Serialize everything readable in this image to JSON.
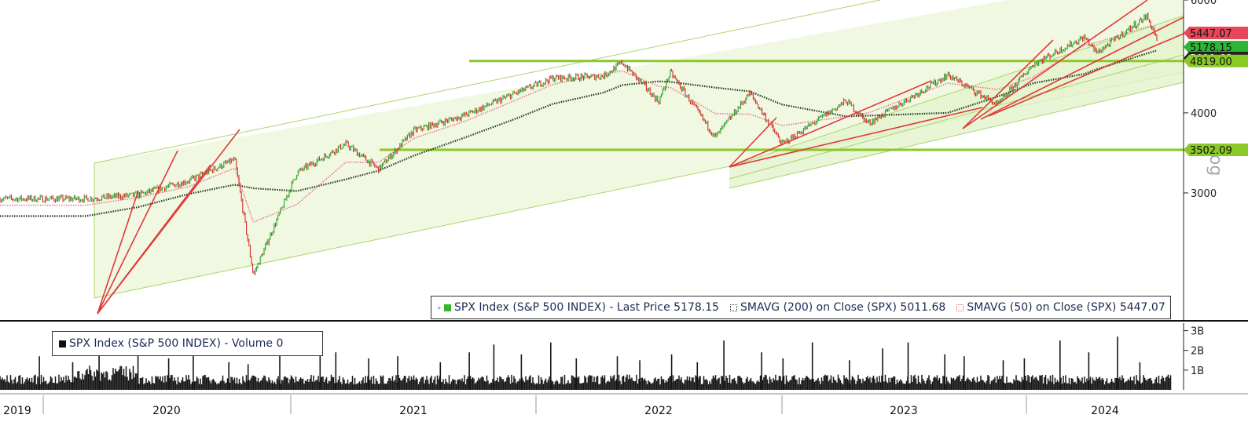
{
  "chart_data": [
    {
      "type": "line",
      "ticker": "SPX Index",
      "scale": "log",
      "ylim": [
        1900,
        6000
      ],
      "y_ticks": [
        "6000",
        "4000",
        "3000"
      ],
      "y_tick_values": [
        6000,
        4000,
        3000
      ],
      "ylabel": "Log",
      "x_labels": [
        "2019",
        "2020",
        "2021",
        "2022",
        "2023",
        "2024"
      ],
      "x": [
        "2019-06-01",
        "2019-09-01",
        "2019-12-01",
        "2020-02-19",
        "2020-03-23",
        "2020-06-08",
        "2020-09-02",
        "2020-10-30",
        "2020-12-31",
        "2021-03-31",
        "2021-06-30",
        "2021-09-02",
        "2021-11-30",
        "2022-01-03",
        "2022-03-08",
        "2022-03-29",
        "2022-06-16",
        "2022-08-16",
        "2022-10-12",
        "2023-02-02",
        "2023-03-13",
        "2023-07-31",
        "2023-10-27",
        "2023-12-29",
        "2024-03-28",
        "2024-04-19",
        "2024-07-16",
        "2024-08-05"
      ],
      "series": [
        {
          "name": "SPX Index (S&P 500 INDEX)",
          "values": [
            2940,
            2980,
            3140,
            3386,
            2237,
            3230,
            3580,
            3270,
            3756,
            3970,
            4300,
            4536,
            4567,
            4796,
            4170,
            4630,
            3667,
            4300,
            3577,
            4180,
            3855,
            4588,
            4117,
            4770,
            5254,
            4967,
            5667,
            5178
          ]
        },
        {
          "name": "SMAVG (200) on Close (SPX)",
          "values": [
            2760,
            2850,
            2990,
            3090,
            3050,
            3020,
            3150,
            3250,
            3430,
            3660,
            3920,
            4130,
            4300,
            4420,
            4480,
            4470,
            4380,
            4320,
            4120,
            3950,
            3960,
            4000,
            4240,
            4450,
            4600,
            4680,
            4950,
            5011
          ]
        },
        {
          "name": "SMAVG (50) on Close (SPX)",
          "values": [
            2870,
            2950,
            3070,
            3280,
            2700,
            2880,
            3350,
            3350,
            3650,
            3880,
            4190,
            4430,
            4600,
            4650,
            4400,
            4380,
            3990,
            3980,
            3820,
            3950,
            4000,
            4450,
            4350,
            4550,
            5100,
            5150,
            5450,
            5447
          ]
        }
      ],
      "price_labels": [
        {
          "text": "5447.07",
          "value": 5447.07,
          "color": "#e8475a"
        },
        {
          "text": "5178.15",
          "value": 5178.15,
          "color": "#2fb536"
        },
        {
          "text": "5011.68",
          "value": 5011.68,
          "color": "#222222"
        },
        {
          "text": "4819.00",
          "value": 4819.0,
          "color": "#8ac926"
        },
        {
          "text": "3502.09",
          "value": 3502.09,
          "color": "#8ac926"
        }
      ],
      "horizontal_levels": [
        4819.0,
        3502.09
      ],
      "legend": {
        "price": "SPX Index (S&P 500 INDEX) - Last Price 5178.15",
        "sma200": "SMAVG (200)  on Close (SPX) 5011.68",
        "sma50": "SMAVG (50)  on Close (SPX) 5447.07"
      },
      "legend_placement": "bottom-right",
      "grid": false
    },
    {
      "type": "bar",
      "name": "SPX Index (S&P 500 INDEX) - Volume",
      "legend": "SPX Index (S&P 500 INDEX) - Volume 0",
      "y_ticks": [
        "3B",
        "2B",
        "1B"
      ],
      "y_tick_values": [
        3,
        2,
        1
      ],
      "unit": "billions of shares",
      "ylim": [
        0,
        3.3
      ],
      "typical_value": 0.55,
      "spike_values": [
        1.7,
        1.4,
        2.5,
        2.0,
        1.6,
        1.9,
        1.4,
        1.3,
        1.8,
        2.2,
        1.9,
        1.6,
        1.7,
        1.4,
        1.9,
        2.3,
        1.8,
        2.4,
        1.6,
        1.7,
        1.5,
        1.8,
        1.4,
        2.5,
        1.9,
        1.6,
        2.4,
        1.5,
        2.1,
        2.4,
        1.8,
        1.7,
        1.5,
        1.6,
        2.5,
        1.9,
        2.7,
        1.4
      ]
    }
  ],
  "colors": {
    "price_up": "#2e9e2e",
    "price_down": "#d42a2a",
    "sma50": "#e8798a",
    "sma200": "#1f3a1f",
    "channel_fill": "#f1f8e1",
    "channel_line": "#a9d66a",
    "level_line": "#8ac926",
    "trendline": "#e03a3a",
    "volume": "#151515"
  }
}
